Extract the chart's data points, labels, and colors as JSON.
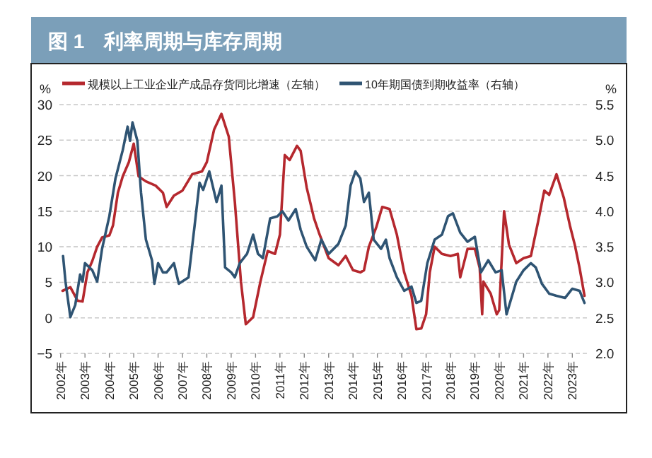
{
  "chart_data": {
    "type": "line",
    "title": "图 1　利率周期与库存周期",
    "ylabel": "%",
    "y2label": "%",
    "legend": "top",
    "grid": "y",
    "line_style": "solid",
    "marker": "none",
    "xlim": [
      2001.95,
      2023.6
    ],
    "xticks": [
      {
        "value": 2002,
        "label": "2002年"
      },
      {
        "value": 2003,
        "label": "2003年"
      },
      {
        "value": 2004,
        "label": "2004年"
      },
      {
        "value": 2005,
        "label": "2005年"
      },
      {
        "value": 2006,
        "label": "2006年"
      },
      {
        "value": 2007,
        "label": "2007年"
      },
      {
        "value": 2008,
        "label": "2008年"
      },
      {
        "value": 2009,
        "label": "2009年"
      },
      {
        "value": 2010,
        "label": "2010年"
      },
      {
        "value": 2011,
        "label": "2011年"
      },
      {
        "value": 2012,
        "label": "2012年"
      },
      {
        "value": 2013,
        "label": "2013年"
      },
      {
        "value": 2014,
        "label": "2014年"
      },
      {
        "value": 2015,
        "label": "2015年"
      },
      {
        "value": 2016,
        "label": "2016年"
      },
      {
        "value": 2017,
        "label": "2017年"
      },
      {
        "value": 2018,
        "label": "2018年"
      },
      {
        "value": 2019,
        "label": "2019年"
      },
      {
        "value": 2020,
        "label": "2020年"
      },
      {
        "value": 2021,
        "label": "2021年"
      },
      {
        "value": 2022,
        "label": "2022年"
      },
      {
        "value": 2023,
        "label": "2023年"
      }
    ],
    "ylim": [
      -5,
      30
    ],
    "yticks": [
      {
        "value": -5,
        "label": "−5"
      },
      0,
      5,
      10,
      15,
      20,
      25,
      30
    ],
    "y2lim": [
      2.0,
      5.5
    ],
    "y2ticks": [
      {
        "value": 2.0,
        "label": "2.0"
      },
      2.5,
      {
        "value": 3.0,
        "label": "3.0"
      },
      3.5,
      {
        "value": 4.0,
        "label": "4.0"
      },
      4.5,
      {
        "value": 5.0,
        "label": "5.0"
      },
      5.5
    ],
    "series": [
      {
        "name": "规模以上工业企业产成品存货同比增速（左轴）",
        "color": "#b5282e",
        "x": [
          2002.08,
          2002.4,
          2002.7,
          2002.9,
          2003.1,
          2003.3,
          2003.5,
          2003.7,
          2004.0,
          2004.15,
          2004.35,
          2004.55,
          2004.8,
          2005.0,
          2005.2,
          2005.5,
          2005.9,
          2006.2,
          2006.35,
          2006.65,
          2007.0,
          2007.4,
          2007.8,
          2008.0,
          2008.3,
          2008.6,
          2008.9,
          2009.15,
          2009.4,
          2009.6,
          2009.9,
          2010.2,
          2010.5,
          2010.8,
          2011.0,
          2011.2,
          2011.4,
          2011.7,
          2011.85,
          2012.1,
          2012.4,
          2012.6,
          2013.0,
          2013.4,
          2013.7,
          2014.0,
          2014.3,
          2014.45,
          2014.65,
          2014.95,
          2015.2,
          2015.5,
          2015.8,
          2016.1,
          2016.4,
          2016.6,
          2016.8,
          2017.0,
          2017.15,
          2017.35,
          2017.65,
          2018.0,
          2018.3,
          2018.4,
          2018.7,
          2019.0,
          2019.2,
          2019.3,
          2019.35,
          2019.65,
          2019.9,
          2020.0,
          2020.2,
          2020.4,
          2020.7,
          2021.0,
          2021.3,
          2021.6,
          2021.85,
          2022.05,
          2022.35,
          2022.65,
          2022.9,
          2023.1,
          2023.3,
          2023.5
        ],
        "values": [
          3.8,
          4.3,
          2.4,
          2.3,
          6.4,
          8,
          10,
          11.3,
          11.6,
          13,
          17.6,
          19.9,
          21.9,
          24.5,
          19.9,
          19.2,
          18.6,
          17.6,
          15.6,
          17.2,
          17.9,
          20.2,
          20.6,
          21.9,
          26.5,
          28.7,
          25.5,
          16.3,
          5.1,
          -0.9,
          0.1,
          5.1,
          9.4,
          9,
          11.7,
          22.9,
          22.2,
          24.2,
          23.5,
          18.3,
          14,
          12,
          8.4,
          7.4,
          8.7,
          6.7,
          6.4,
          6.7,
          10,
          12.7,
          15.6,
          15.3,
          11.7,
          6.4,
          3.1,
          -1.6,
          -1.5,
          0.5,
          6.4,
          10,
          9,
          8.7,
          9,
          5.7,
          9.7,
          9.7,
          7,
          0.5,
          5.1,
          3.4,
          0.5,
          1.1,
          15,
          10.3,
          7.7,
          8.4,
          8.7,
          13.6,
          17.9,
          17.3,
          20.2,
          16.9,
          13,
          10.3,
          7,
          3.1
        ]
      },
      {
        "name": "10年期国债到期收益率（右轴）",
        "color": "#2f5473",
        "axis": "y2",
        "x": [
          2002.1,
          2002.2,
          2002.4,
          2002.6,
          2002.8,
          2002.9,
          2003.0,
          2003.3,
          2003.5,
          2003.7,
          2004.0,
          2004.25,
          2004.55,
          2004.75,
          2004.85,
          2004.95,
          2005.15,
          2005.3,
          2005.5,
          2005.75,
          2005.85,
          2006.0,
          2006.2,
          2006.35,
          2006.65,
          2006.85,
          2007.25,
          2007.5,
          2007.7,
          2007.85,
          2008.1,
          2008.4,
          2008.6,
          2008.75,
          2009.0,
          2009.15,
          2009.35,
          2009.65,
          2009.9,
          2010.1,
          2010.3,
          2010.6,
          2010.9,
          2011.1,
          2011.35,
          2011.65,
          2011.85,
          2012.1,
          2012.45,
          2012.7,
          2013.0,
          2013.4,
          2013.7,
          2013.9,
          2014.1,
          2014.3,
          2014.45,
          2014.65,
          2014.85,
          2015.15,
          2015.35,
          2015.5,
          2015.8,
          2016.1,
          2016.4,
          2016.6,
          2016.8,
          2017.05,
          2017.35,
          2017.65,
          2017.9,
          2018.1,
          2018.4,
          2018.7,
          2019.0,
          2019.25,
          2019.55,
          2019.85,
          2020.1,
          2020.3,
          2020.7,
          2021.0,
          2021.3,
          2021.5,
          2021.75,
          2022.05,
          2022.35,
          2022.7,
          2023.0,
          2023.3,
          2023.5
        ],
        "values": [
          3.37,
          3.01,
          2.51,
          2.68,
          3.11,
          3.01,
          3.27,
          3.17,
          3.01,
          3.47,
          3.93,
          4.46,
          4.86,
          5.19,
          4.99,
          5.25,
          4.99,
          4.26,
          3.6,
          3.31,
          2.98,
          3.27,
          3.14,
          3.14,
          3.27,
          2.98,
          3.07,
          3.8,
          4.4,
          4.3,
          4.56,
          4.13,
          4.36,
          3.21,
          3.14,
          3.07,
          3.27,
          3.4,
          3.67,
          3.4,
          3.34,
          3.9,
          3.93,
          4.0,
          3.87,
          4.03,
          3.74,
          3.5,
          3.31,
          3.6,
          3.4,
          3.54,
          3.8,
          4.36,
          4.56,
          4.46,
          4.13,
          4.26,
          3.6,
          3.47,
          3.6,
          3.34,
          3.07,
          2.88,
          2.94,
          2.71,
          2.74,
          3.27,
          3.6,
          3.67,
          3.93,
          3.97,
          3.7,
          3.57,
          3.64,
          3.14,
          3.31,
          3.14,
          3.17,
          2.55,
          3.01,
          3.17,
          3.27,
          3.21,
          2.98,
          2.84,
          2.81,
          2.78,
          2.91,
          2.88,
          2.71
        ]
      }
    ]
  }
}
